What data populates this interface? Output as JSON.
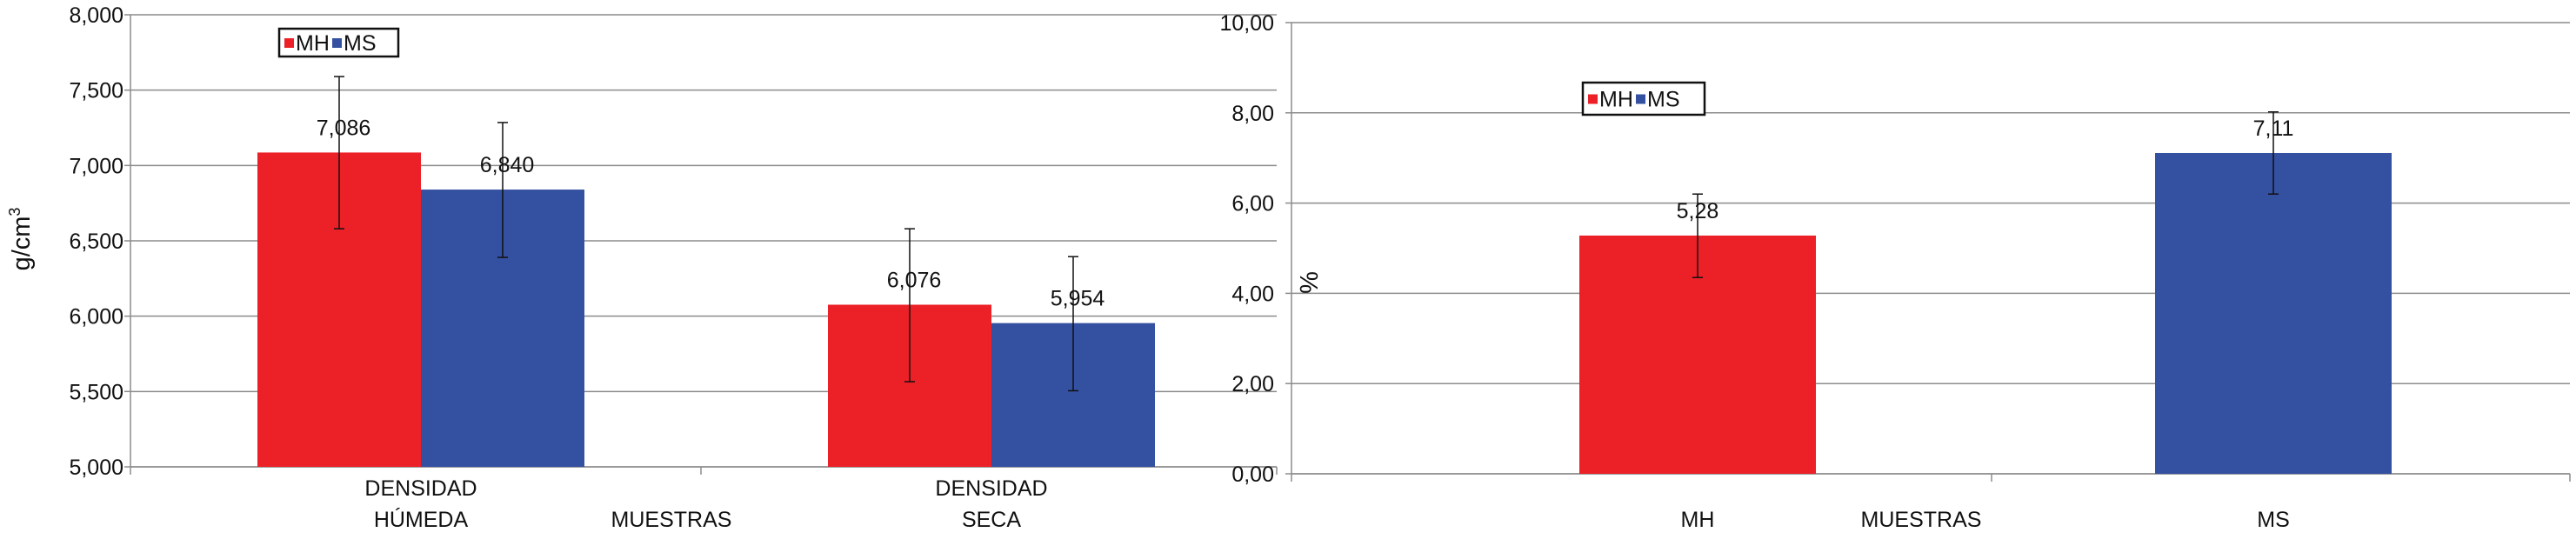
{
  "chart_data": [
    {
      "type": "bar",
      "title": "",
      "xlabel": "MUESTRAS",
      "ylabel": "g/cm",
      "ylabel_sup": "3",
      "ylim": [
        5000,
        8000
      ],
      "yticks": [
        5000,
        5500,
        6000,
        6500,
        7000,
        7500,
        8000
      ],
      "ytick_labels": [
        "5,000",
        "5,500",
        "6,000",
        "6,500",
        "7,000",
        "7,500",
        "8,000"
      ],
      "categories": [
        [
          "DENSIDAD",
          "HÚMEDA"
        ],
        [
          "DENSIDAD",
          "SECA"
        ]
      ],
      "series": [
        {
          "name": "MH",
          "color": "#ec2027",
          "values": [
            7086,
            6076
          ],
          "labels": [
            "7,086",
            "6,076"
          ],
          "err_low": [
            6580,
            5565
          ],
          "err_high": [
            7590,
            6580
          ]
        },
        {
          "name": "MS",
          "color": "#3450a0",
          "values": [
            6840,
            5954
          ],
          "labels": [
            "6,840",
            "5,954"
          ],
          "err_low": [
            6390,
            5505
          ],
          "err_high": [
            7285,
            6395
          ]
        }
      ],
      "legend": "top-left",
      "grid": true
    },
    {
      "type": "bar",
      "title": "",
      "xlabel": "MUESTRAS",
      "ylabel": "%",
      "ylim": [
        0,
        10
      ],
      "yticks": [
        0,
        2,
        4,
        6,
        8,
        10
      ],
      "ytick_labels": [
        "0,00",
        "2,00",
        "4,00",
        "6,00",
        "8,00",
        "10,00"
      ],
      "categories": [
        [
          "MH"
        ],
        [
          "MS"
        ]
      ],
      "series": [
        {
          "name": "MH",
          "color": "#ec2027",
          "values": [
            5.28,
            null
          ],
          "labels": [
            "5,28",
            ""
          ],
          "err_low": [
            4.35,
            null
          ],
          "err_high": [
            6.2,
            null
          ]
        },
        {
          "name": "MS",
          "color": "#3450a0",
          "values": [
            null,
            7.11
          ],
          "labels": [
            "",
            "7,11"
          ],
          "err_low": [
            null,
            6.2
          ],
          "err_high": [
            null,
            8.02
          ]
        }
      ],
      "legend": "top-left",
      "grid": true
    }
  ]
}
